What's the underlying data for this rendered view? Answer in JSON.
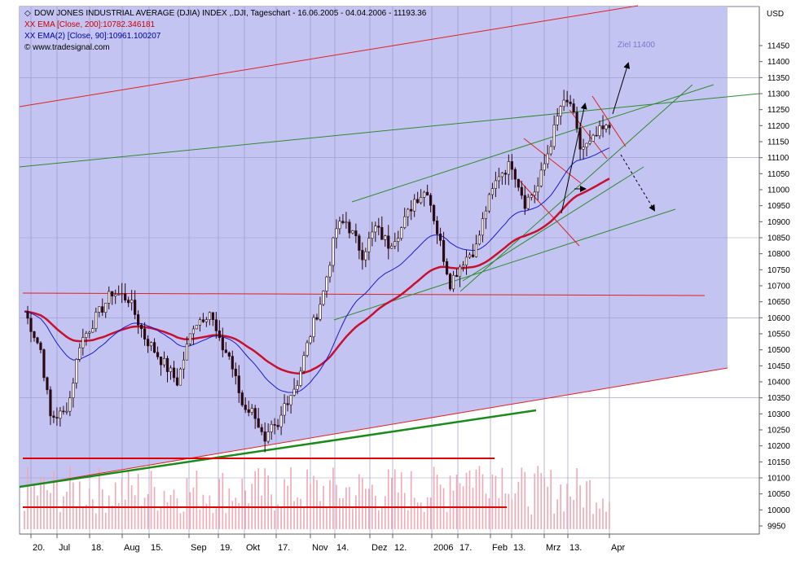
{
  "header": {
    "line1_prefix": "◇",
    "line1": "DOW JONES INDUSTRIAL AVERAGE (DJIA) INDEX ,.DJI, Tageschart - 16.06.2005 - 04.04.2006 - 11193.36",
    "line2": "XX EMA [Close, 200]:10782.346181",
    "line3": "XX EMA(2) [Close, 90]:10961.100207",
    "line4": "© www.tradesignal.com"
  },
  "colors": {
    "background": "#ffffff",
    "plot_fill": "#c4c4f2",
    "grid": "#9a9ac8",
    "candle": "#2a0a12",
    "ema200": "#c8102e",
    "ema90": "#1a1ad0",
    "trend_red": "#e02020",
    "trend_green": "#2e8b2e",
    "volume": "#f0a8b4",
    "annotation": "#7878d0",
    "line2_color": "#cc0000",
    "line3_color": "#0000aa"
  },
  "chart_data": {
    "type": "candlestick",
    "yunit": "USD",
    "ylim": [
      9900,
      11650
    ],
    "yticks": [
      9950,
      10000,
      10050,
      10100,
      10150,
      10200,
      10250,
      10300,
      10350,
      10400,
      10450,
      10500,
      10550,
      10600,
      10650,
      10700,
      10750,
      10800,
      10850,
      10900,
      10950,
      11000,
      11050,
      11100,
      11150,
      11200,
      11250,
      11300,
      11350,
      11400,
      11450
    ],
    "xticks": [
      "20.",
      "Jul",
      "18.",
      "Aug",
      "15.",
      "Sep",
      "19.",
      "Okt",
      "17.",
      "Nov",
      "14.",
      "Dez",
      "12.",
      "2006",
      "17.",
      "Feb",
      "13.",
      "Mrz",
      "13.",
      "Apr"
    ],
    "annotation": "Ziel 11400",
    "series": [
      {
        "name": "Close",
        "x_start": "2005-06-16",
        "x_end": "2006-04-04",
        "last": 11193.36,
        "waypoints": [
          [
            0,
            10620
          ],
          [
            5,
            10500
          ],
          [
            8,
            10290
          ],
          [
            12,
            10300
          ],
          [
            14,
            10350
          ],
          [
            17,
            10520
          ],
          [
            22,
            10600
          ],
          [
            27,
            10680
          ],
          [
            32,
            10660
          ],
          [
            37,
            10540
          ],
          [
            42,
            10470
          ],
          [
            47,
            10400
          ],
          [
            52,
            10580
          ],
          [
            57,
            10620
          ],
          [
            60,
            10520
          ],
          [
            63,
            10480
          ],
          [
            67,
            10330
          ],
          [
            71,
            10300
          ],
          [
            74,
            10200
          ],
          [
            76,
            10250
          ],
          [
            78,
            10250
          ],
          [
            80,
            10330
          ],
          [
            84,
            10400
          ],
          [
            88,
            10550
          ],
          [
            92,
            10680
          ],
          [
            96,
            10880
          ],
          [
            99,
            10900
          ],
          [
            104,
            10800
          ],
          [
            108,
            10880
          ],
          [
            112,
            10830
          ],
          [
            116,
            10880
          ],
          [
            120,
            10970
          ],
          [
            124,
            11000
          ],
          [
            127,
            10870
          ],
          [
            131,
            10710
          ],
          [
            135,
            10780
          ],
          [
            139,
            10820
          ],
          [
            142,
            10940
          ],
          [
            146,
            11050
          ],
          [
            150,
            11080
          ],
          [
            154,
            10960
          ],
          [
            158,
            11010
          ],
          [
            162,
            11150
          ],
          [
            165,
            11260
          ],
          [
            168,
            11270
          ],
          [
            171,
            11130
          ],
          [
            174,
            11140
          ],
          [
            177,
            11180
          ],
          [
            180,
            11193
          ]
        ]
      },
      {
        "name": "EMA 200",
        "value": 10782.346181,
        "x_start": "2005-06-16",
        "x_end": "2006-04-04"
      },
      {
        "name": "EMA 90",
        "value": 10961.100207,
        "x_start": "2005-06-16",
        "x_end": "2006-04-04"
      }
    ]
  }
}
